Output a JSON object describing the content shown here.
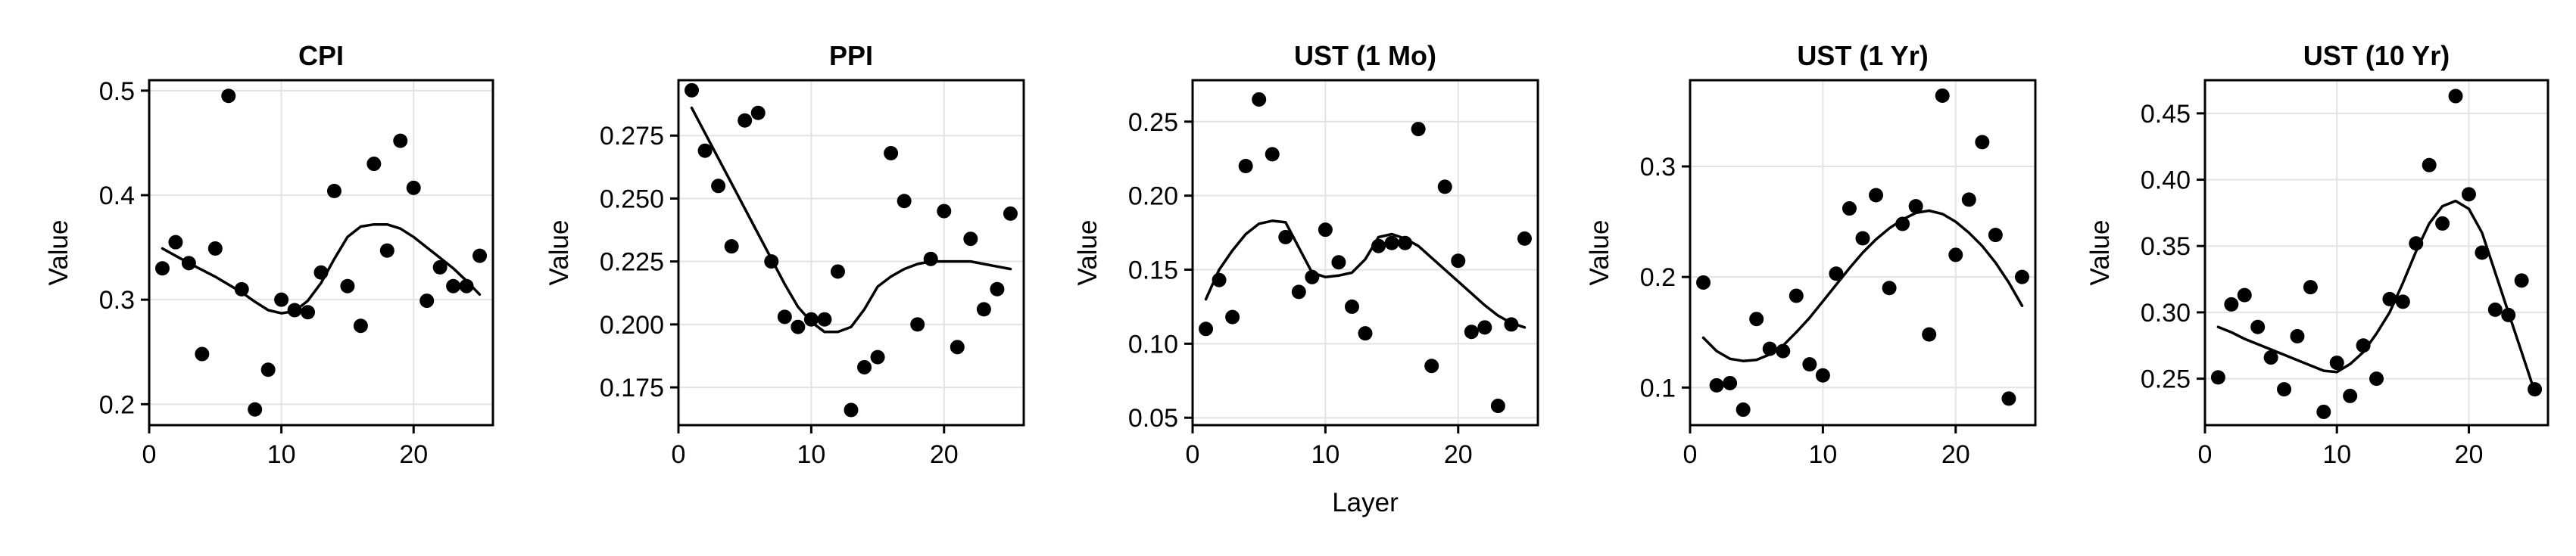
{
  "figure": {
    "x_axis_label": "Layer"
  },
  "chart_data": [
    {
      "type": "scatter",
      "title": "CPI",
      "ylabel": "Value",
      "xlabel": "",
      "xlim": [
        0,
        26
      ],
      "ylim": [
        0.18,
        0.51
      ],
      "xticks": [
        0,
        10,
        20
      ],
      "yticks": [
        0.2,
        0.3,
        0.4,
        0.5
      ],
      "ytick_labels": [
        "0.2",
        "0.3",
        "0.4",
        "0.5"
      ],
      "grid": true,
      "points": {
        "x": [
          1,
          2,
          3,
          4,
          5,
          6,
          7,
          8,
          9,
          10,
          11,
          12,
          13,
          14,
          15,
          16,
          17,
          18,
          19,
          20,
          21,
          22,
          23,
          24,
          25
        ],
        "y": [
          0.33,
          0.355,
          0.335,
          0.248,
          0.349,
          0.495,
          0.31,
          0.195,
          0.233,
          0.3,
          0.29,
          0.288,
          0.326,
          0.404,
          0.313,
          0.275,
          0.43,
          0.347,
          0.452,
          0.407,
          0.299,
          0.331,
          0.313,
          0.313,
          0.342
        ]
      },
      "trend": {
        "x": [
          1,
          3,
          5,
          7,
          8,
          9,
          10,
          11,
          12,
          13,
          14,
          15,
          16,
          17,
          18,
          19,
          20,
          21,
          22,
          23,
          24,
          25
        ],
        "y": [
          0.349,
          0.335,
          0.322,
          0.307,
          0.298,
          0.29,
          0.287,
          0.289,
          0.299,
          0.316,
          0.339,
          0.36,
          0.37,
          0.372,
          0.372,
          0.368,
          0.36,
          0.35,
          0.34,
          0.33,
          0.318,
          0.305
        ]
      }
    },
    {
      "type": "scatter",
      "title": "PPI",
      "ylabel": "Value",
      "xlabel": "",
      "xlim": [
        0,
        26
      ],
      "ylim": [
        0.16,
        0.297
      ],
      "xticks": [
        0,
        10,
        20
      ],
      "yticks": [
        0.175,
        0.2,
        0.225,
        0.25,
        0.275
      ],
      "ytick_labels": [
        "0.175",
        "0.200",
        "0.225",
        "0.250",
        "0.275"
      ],
      "grid": true,
      "points": {
        "x": [
          1,
          2,
          3,
          4,
          5,
          6,
          7,
          8,
          9,
          10,
          11,
          12,
          13,
          14,
          15,
          16,
          17,
          18,
          19,
          20,
          21,
          22,
          23,
          24,
          25
        ],
        "y": [
          0.293,
          0.269,
          0.255,
          0.231,
          0.281,
          0.284,
          0.225,
          0.203,
          0.199,
          0.202,
          0.202,
          0.221,
          0.166,
          0.183,
          0.187,
          0.268,
          0.249,
          0.2,
          0.226,
          0.245,
          0.191,
          0.234,
          0.206,
          0.214,
          0.244
        ]
      },
      "trend": {
        "x": [
          1,
          2,
          3,
          4,
          5,
          6,
          7,
          8,
          9,
          10,
          11,
          12,
          13,
          14,
          15,
          16,
          17,
          18,
          19,
          20,
          21,
          22,
          23,
          24,
          25
        ],
        "y": [
          0.286,
          0.276,
          0.266,
          0.256,
          0.246,
          0.236,
          0.226,
          0.216,
          0.207,
          0.201,
          0.197,
          0.197,
          0.199,
          0.206,
          0.215,
          0.219,
          0.222,
          0.224,
          0.225,
          0.225,
          0.225,
          0.225,
          0.224,
          0.223,
          0.222
        ]
      }
    },
    {
      "type": "scatter",
      "title": "UST (1 Mo)",
      "ylabel": "Value",
      "xlabel": "Layer",
      "xlim": [
        0,
        26
      ],
      "ylim": [
        0.045,
        0.278
      ],
      "xticks": [
        0,
        10,
        20
      ],
      "yticks": [
        0.05,
        0.1,
        0.15,
        0.2,
        0.25
      ],
      "ytick_labels": [
        "0.05",
        "0.10",
        "0.15",
        "0.20",
        "0.25"
      ],
      "grid": true,
      "points": {
        "x": [
          1,
          2,
          3,
          4,
          5,
          6,
          7,
          8,
          9,
          10,
          11,
          12,
          13,
          14,
          15,
          16,
          17,
          18,
          19,
          20,
          21,
          22,
          23,
          24,
          25
        ],
        "y": [
          0.11,
          0.143,
          0.118,
          0.22,
          0.265,
          0.228,
          0.172,
          0.135,
          0.145,
          0.177,
          0.155,
          0.125,
          0.107,
          0.166,
          0.168,
          0.168,
          0.245,
          0.085,
          0.206,
          0.156,
          0.108,
          0.111,
          0.058,
          0.113,
          0.171
        ]
      },
      "trend": {
        "x": [
          1,
          2,
          3,
          4,
          5,
          6,
          7,
          8,
          9,
          10,
          11,
          12,
          13,
          14,
          15,
          16,
          17,
          18,
          19,
          20,
          21,
          22,
          23,
          24,
          25
        ],
        "y": [
          0.13,
          0.15,
          0.163,
          0.174,
          0.181,
          0.183,
          0.182,
          0.165,
          0.148,
          0.145,
          0.146,
          0.148,
          0.157,
          0.172,
          0.174,
          0.171,
          0.166,
          0.158,
          0.15,
          0.142,
          0.134,
          0.126,
          0.119,
          0.114,
          0.111
        ]
      }
    },
    {
      "type": "scatter",
      "title": "UST (1 Yr)",
      "ylabel": "Value",
      "xlabel": "",
      "xlim": [
        0,
        26
      ],
      "ylim": [
        0.066,
        0.378
      ],
      "xticks": [
        0,
        10,
        20
      ],
      "yticks": [
        0.1,
        0.2,
        0.3
      ],
      "ytick_labels": [
        "0.1",
        "0.2",
        "0.3"
      ],
      "grid": true,
      "points": {
        "x": [
          1,
          2,
          3,
          4,
          5,
          6,
          7,
          8,
          9,
          10,
          11,
          12,
          13,
          14,
          15,
          16,
          17,
          18,
          19,
          20,
          21,
          22,
          23,
          24,
          25
        ],
        "y": [
          0.195,
          0.102,
          0.104,
          0.08,
          0.162,
          0.135,
          0.133,
          0.183,
          0.121,
          0.111,
          0.203,
          0.262,
          0.235,
          0.274,
          0.19,
          0.248,
          0.264,
          0.148,
          0.364,
          0.22,
          0.27,
          0.322,
          0.238,
          0.09,
          0.2
        ]
      },
      "trend": {
        "x": [
          1,
          2,
          3,
          4,
          5,
          6,
          7,
          8,
          9,
          10,
          11,
          12,
          13,
          14,
          15,
          16,
          17,
          18,
          19,
          20,
          21,
          22,
          23,
          24,
          25
        ],
        "y": [
          0.145,
          0.133,
          0.126,
          0.124,
          0.125,
          0.13,
          0.138,
          0.15,
          0.163,
          0.178,
          0.193,
          0.208,
          0.222,
          0.234,
          0.244,
          0.252,
          0.258,
          0.26,
          0.257,
          0.25,
          0.24,
          0.228,
          0.213,
          0.195,
          0.174
        ]
      }
    },
    {
      "type": "scatter",
      "title": "UST (10 Yr)",
      "ylabel": "Value",
      "xlabel": "",
      "xlim": [
        0,
        26
      ],
      "ylim": [
        0.215,
        0.475
      ],
      "xticks": [
        0,
        10,
        20
      ],
      "yticks": [
        0.25,
        0.3,
        0.35,
        0.4,
        0.45
      ],
      "ytick_labels": [
        "0.25",
        "0.30",
        "0.35",
        "0.40",
        "0.45"
      ],
      "grid": true,
      "points": {
        "x": [
          1,
          2,
          3,
          4,
          5,
          6,
          7,
          8,
          9,
          10,
          11,
          12,
          13,
          14,
          15,
          16,
          17,
          18,
          19,
          20,
          21,
          22,
          23,
          24,
          25
        ],
        "y": [
          0.251,
          0.306,
          0.313,
          0.289,
          0.266,
          0.242,
          0.282,
          0.319,
          0.225,
          0.262,
          0.237,
          0.275,
          0.25,
          0.31,
          0.308,
          0.352,
          0.411,
          0.367,
          0.463,
          0.389,
          0.345,
          0.302,
          0.298,
          0.324,
          0.242
        ]
      },
      "trend": {
        "x": [
          1,
          2,
          3,
          4,
          5,
          6,
          7,
          8,
          9,
          10,
          11,
          12,
          13,
          14,
          15,
          16,
          17,
          18,
          19,
          20,
          21,
          22,
          23,
          24,
          25
        ],
        "y": [
          0.289,
          0.285,
          0.28,
          0.276,
          0.272,
          0.268,
          0.264,
          0.26,
          0.256,
          0.255,
          0.261,
          0.27,
          0.284,
          0.3,
          0.322,
          0.346,
          0.367,
          0.38,
          0.384,
          0.378,
          0.36,
          0.33,
          0.3,
          0.27,
          0.24
        ]
      }
    }
  ]
}
